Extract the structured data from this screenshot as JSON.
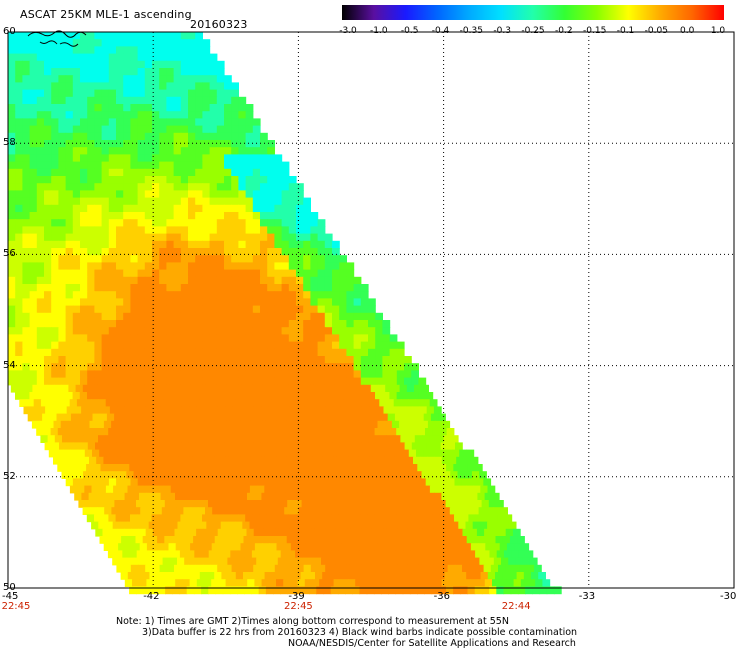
{
  "title": "ASCAT 25KM MLE-1 ascending",
  "date": "20160323",
  "colorbar": {
    "labels": [
      "-3.0",
      "-1.0",
      "-0.5",
      "-0.4",
      "-0.35",
      "-0.3",
      "-0.25",
      "-0.2",
      "-0.15",
      "-0.1",
      "-0.05",
      "0.0",
      "1.0"
    ],
    "colors": [
      "#000000",
      "#5a0fa0",
      "#1a1aff",
      "#0066ff",
      "#00aaff",
      "#00e0ff",
      "#22ffaa",
      "#33ff33",
      "#88ff00",
      "#ffff00",
      "#ffaa00",
      "#ff6600",
      "#ff0000"
    ]
  },
  "map": {
    "lat_labels": [
      "60",
      "58",
      "56",
      "54",
      "52",
      "50"
    ],
    "lon_labels": [
      "-45",
      "-42",
      "-39",
      "-36",
      "-33",
      "-30"
    ],
    "lat_range": [
      50,
      60
    ],
    "lon_range": [
      -45,
      -30
    ],
    "time_labels": [
      {
        "text": "22:45",
        "lon": -45
      },
      {
        "text": "22:45",
        "lon": -39
      },
      {
        "text": "22:44",
        "lon": -34.5
      }
    ]
  },
  "notes": {
    "line1": "Note: 1) Times are GMT 2)Times along bottom correspond to measurement at 55N",
    "line2": "3)Data buffer is 22 hrs from 20160323 4) Black wind barbs indicate possible contamination",
    "line3": "NOAA/NESDIS/Center for Satellite Applications and Research"
  }
}
